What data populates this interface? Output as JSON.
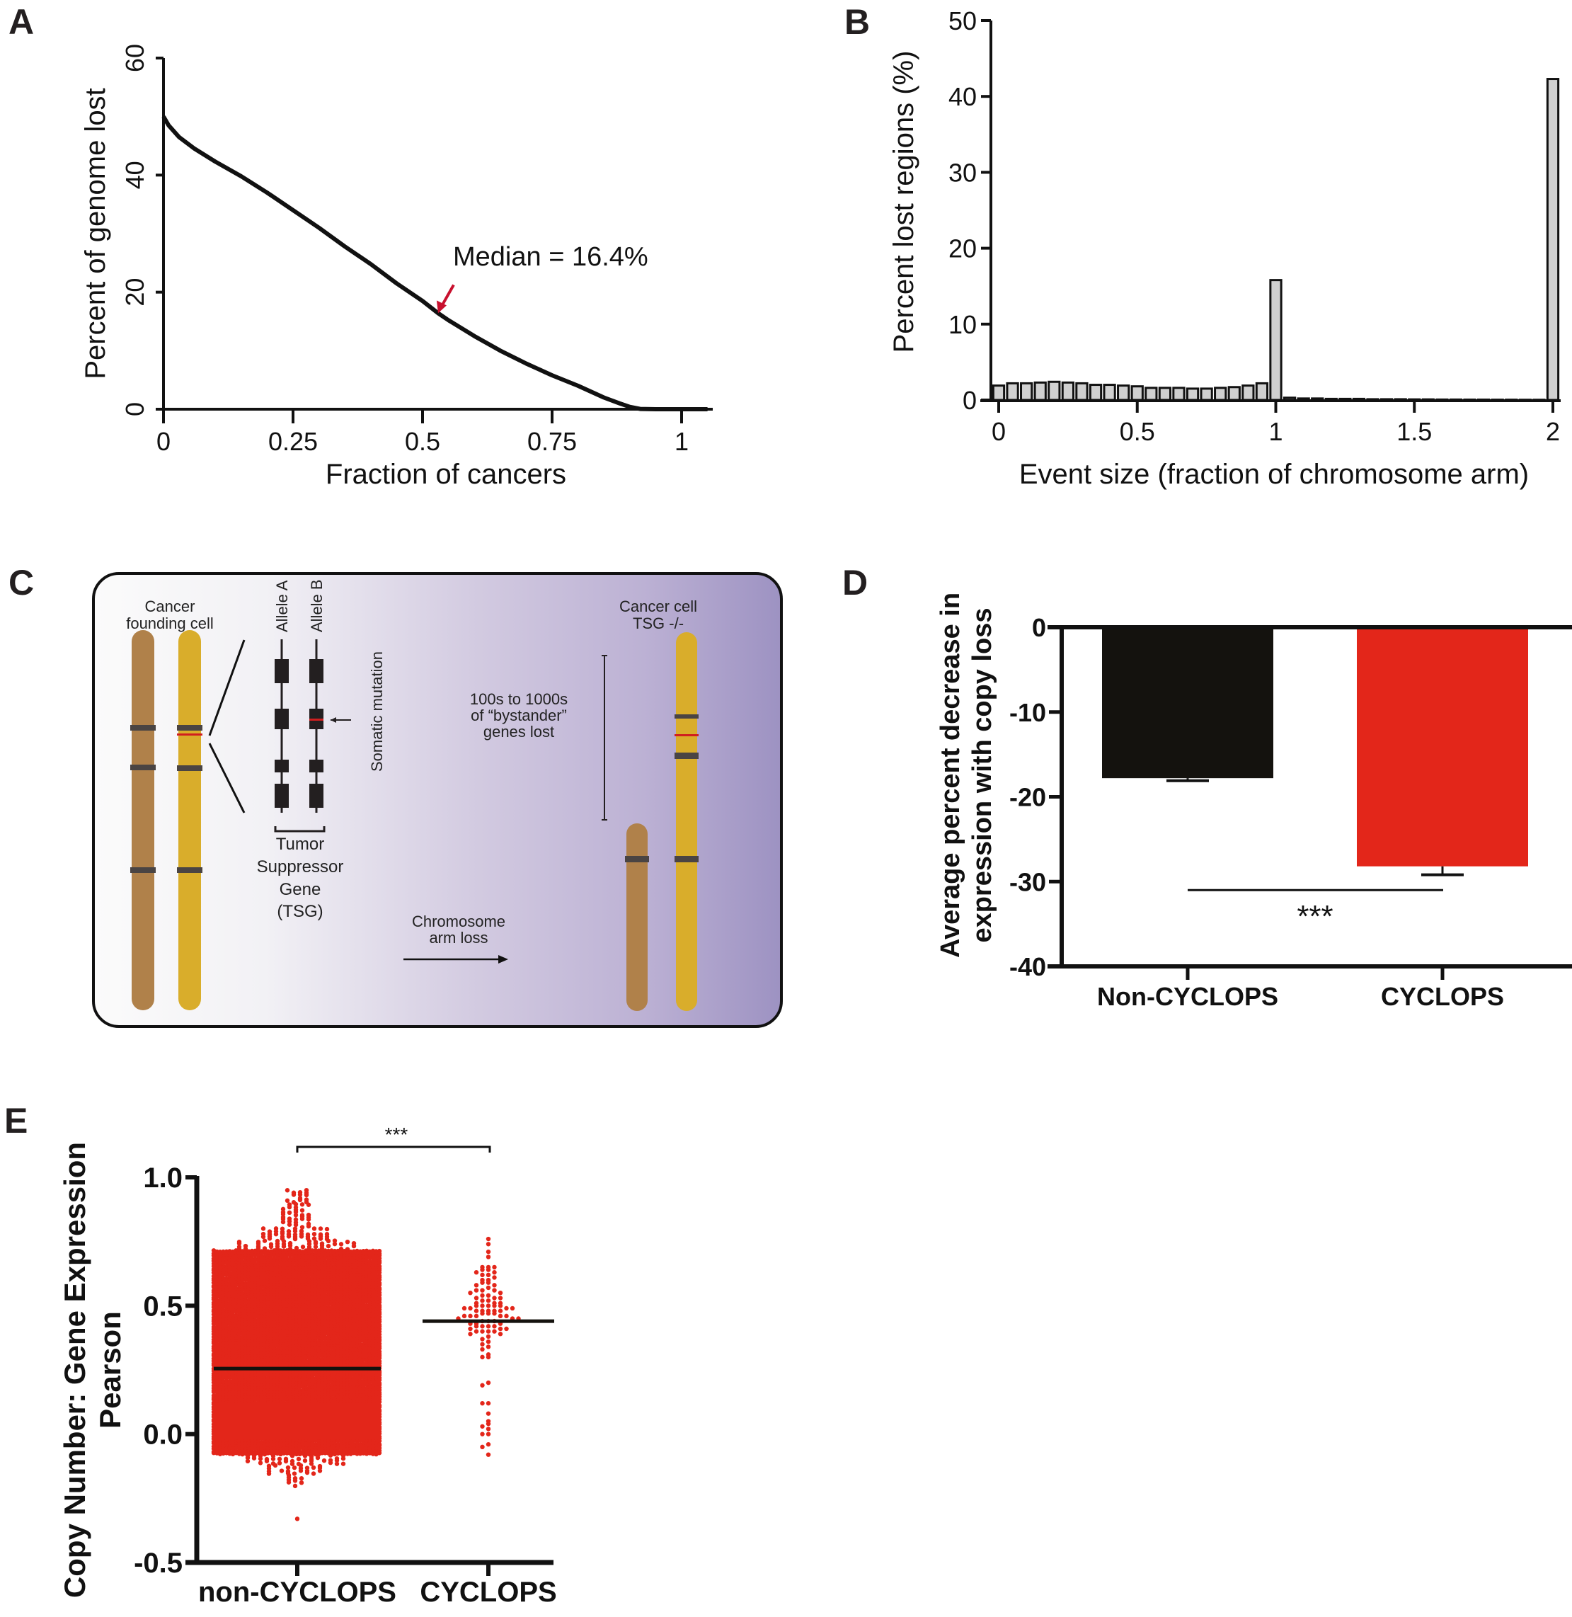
{
  "panels": {
    "A": {
      "letter": "A"
    },
    "B": {
      "letter": "B"
    },
    "C": {
      "letter": "C"
    },
    "D": {
      "letter": "D"
    },
    "E": {
      "letter": "E"
    }
  },
  "colors": {
    "axis": "#111111",
    "red": "#e3261a",
    "arrow_red": "#c8102e",
    "bar_gray": "#d0d0d0",
    "bar_black": "#14120e",
    "chrom_brown": "#b0814a",
    "chrom_yellow": "#d9ad2b",
    "band": "#4a4443",
    "mutation": "#d01f1f",
    "gradient_start": "#fafafa",
    "gradient_end": "#9d92c2"
  },
  "chart_data": [
    {
      "id": "A",
      "type": "line",
      "title": "",
      "xlabel": "Fraction of cancers",
      "ylabel": "Percent of genome lost",
      "xlim": [
        0,
        1.05
      ],
      "ylim": [
        0,
        60
      ],
      "xticks": [
        "0",
        "0.25",
        "0.5",
        "0.75",
        "1"
      ],
      "xtick_values": [
        0,
        0.25,
        0.5,
        0.75,
        1
      ],
      "yticks": [
        "0",
        "20",
        "40",
        "60"
      ],
      "ytick_values": [
        0,
        20,
        40,
        60
      ],
      "x": [
        0,
        0.01,
        0.03,
        0.06,
        0.1,
        0.15,
        0.2,
        0.25,
        0.3,
        0.35,
        0.4,
        0.45,
        0.5,
        0.53,
        0.55,
        0.6,
        0.65,
        0.7,
        0.75,
        0.8,
        0.85,
        0.88,
        0.9,
        0.92,
        0.95,
        1.0,
        1.05
      ],
      "y": [
        50,
        48.5,
        46.5,
        44.5,
        42.3,
        39.8,
        37.0,
        34.0,
        31.0,
        27.8,
        24.8,
        21.5,
        18.5,
        16.4,
        15.2,
        12.5,
        10.0,
        7.8,
        5.8,
        4.0,
        2.0,
        1.0,
        0.4,
        0.05,
        0,
        0,
        0
      ],
      "annotation": {
        "text": "Median =  16.4%",
        "x": 0.53,
        "y": 16.4,
        "arrow_color": "#c8102e"
      }
    },
    {
      "id": "B",
      "type": "bar",
      "title": "",
      "xlabel": "Event size (fraction of chromosome arm)",
      "ylabel": "Percent lost regions (%)",
      "xlim": [
        -0.02,
        2.02
      ],
      "ylim": [
        0,
        50
      ],
      "xticks": [
        "0",
        "0.5",
        "1",
        "1.5",
        "2"
      ],
      "xtick_values": [
        0,
        0.5,
        1,
        1.5,
        2
      ],
      "yticks": [
        "0",
        "10",
        "20",
        "30",
        "40",
        "50"
      ],
      "ytick_values": [
        0,
        10,
        20,
        30,
        40,
        50
      ],
      "bin_width": 0.05,
      "x": [
        0,
        0.05,
        0.1,
        0.15,
        0.2,
        0.25,
        0.3,
        0.35,
        0.4,
        0.45,
        0.5,
        0.55,
        0.6,
        0.65,
        0.7,
        0.75,
        0.8,
        0.85,
        0.9,
        0.95,
        1.0,
        1.05,
        1.1,
        1.15,
        1.2,
        1.25,
        1.3,
        1.35,
        1.4,
        1.45,
        1.5,
        1.55,
        1.6,
        1.65,
        1.7,
        1.75,
        1.8,
        1.85,
        1.9,
        1.95,
        2.0
      ],
      "values": [
        1.9,
        2.2,
        2.2,
        2.3,
        2.4,
        2.3,
        2.2,
        2.0,
        2.0,
        1.9,
        1.8,
        1.6,
        1.6,
        1.6,
        1.5,
        1.5,
        1.6,
        1.7,
        1.9,
        2.2,
        15.8,
        0.3,
        0.2,
        0.2,
        0.15,
        0.15,
        0.15,
        0.1,
        0.1,
        0.1,
        0.08,
        0.08,
        0.06,
        0.06,
        0.05,
        0.05,
        0.04,
        0.04,
        0.03,
        0.03,
        42.3
      ]
    },
    {
      "id": "D",
      "type": "bar",
      "title": "",
      "xlabel": "",
      "ylabel_lines": [
        "Average percent decrease in",
        "expression with copy loss"
      ],
      "ylim": [
        -40,
        0
      ],
      "yticks": [
        "0",
        "-10",
        "-20",
        "-30",
        "-40"
      ],
      "ytick_values": [
        0,
        -10,
        -20,
        -30,
        -40
      ],
      "categories": [
        "Non-CYCLOPS",
        "CYCLOPS"
      ],
      "values": [
        -17.8,
        -28.2
      ],
      "errors": [
        0.3,
        1.0
      ],
      "bar_colors": [
        "#14120e",
        "#e3261a"
      ],
      "significance": {
        "text": "***",
        "y": -31
      }
    },
    {
      "id": "E",
      "type": "scatter",
      "title": "",
      "ylabel_lines": [
        "Copy Number: Gene Expression",
        "Pearson"
      ],
      "ylim": [
        -0.5,
        1.0
      ],
      "yticks": [
        "1.0",
        "0.5",
        "0.0",
        "-0.5"
      ],
      "ytick_values": [
        1.0,
        0.5,
        0.0,
        -0.5
      ],
      "categories": [
        "non-CYCLOPS",
        "CYCLOPS"
      ],
      "means": [
        0.255,
        0.44
      ],
      "point_color": "#e3261a",
      "significance": {
        "text": "***"
      },
      "series": [
        {
          "name": "non-CYCLOPS",
          "approx_range": [
            -0.33,
            0.95
          ],
          "dense_range": [
            -0.08,
            0.72
          ]
        },
        {
          "name": "CYCLOPS",
          "values": [
            0.76,
            0.74,
            0.71,
            0.69,
            0.65,
            0.65,
            0.65,
            0.64,
            0.64,
            0.63,
            0.63,
            0.62,
            0.62,
            0.61,
            0.6,
            0.6,
            0.59,
            0.59,
            0.58,
            0.58,
            0.57,
            0.56,
            0.56,
            0.56,
            0.55,
            0.55,
            0.54,
            0.54,
            0.53,
            0.53,
            0.53,
            0.52,
            0.52,
            0.51,
            0.51,
            0.51,
            0.5,
            0.5,
            0.5,
            0.5,
            0.5,
            0.49,
            0.49,
            0.49,
            0.49,
            0.48,
            0.48,
            0.48,
            0.48,
            0.48,
            0.47,
            0.47,
            0.47,
            0.46,
            0.46,
            0.46,
            0.46,
            0.46,
            0.45,
            0.45,
            0.45,
            0.44,
            0.44,
            0.44,
            0.43,
            0.43,
            0.43,
            0.42,
            0.42,
            0.42,
            0.42,
            0.41,
            0.41,
            0.41,
            0.4,
            0.4,
            0.4,
            0.4,
            0.39,
            0.39,
            0.38,
            0.37,
            0.36,
            0.35,
            0.34,
            0.33,
            0.31,
            0.3,
            0.3,
            0.2,
            0.19,
            0.12,
            0.12,
            0.08,
            0.04,
            0.05,
            0.03,
            0.02,
            0.0,
            0.0,
            -0.04,
            -0.05,
            -0.08
          ]
        }
      ]
    }
  ],
  "diagram_C": {
    "left_title_lines": [
      "Cancer",
      "founding cell"
    ],
    "allele_a": "Allele A",
    "allele_b": "Allele B",
    "somatic_mutation": "Somatic mutation",
    "tsg_lines": [
      "Tumor",
      "Suppressor",
      "Gene",
      "(TSG)"
    ],
    "bystander_lines": [
      "100s to 1000s",
      "of “bystander”",
      "genes lost"
    ],
    "arm_loss_lines": [
      "Chromosome",
      "arm loss"
    ],
    "right_title_lines": [
      "Cancer cell",
      "TSG -/-"
    ]
  }
}
